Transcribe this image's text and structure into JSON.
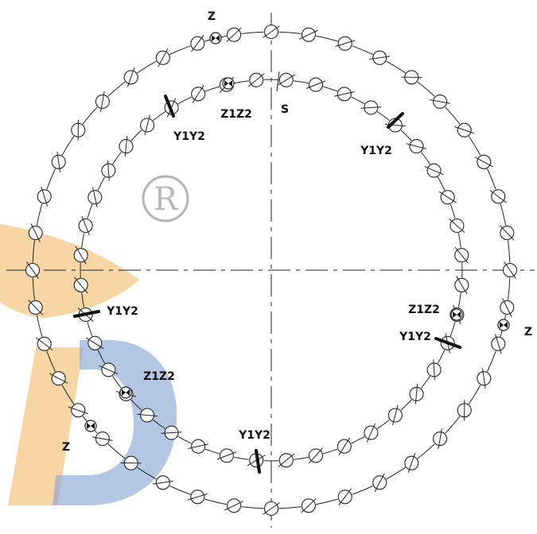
{
  "diagram": {
    "labels": {
      "z_top": "Z",
      "z1z2_top": "Z1Z2",
      "s_top": "S",
      "y1y2_upper_left": "Y1Y2",
      "y1y2_upper_right": "Y1Y2",
      "z1z2_right": "Z1Z2",
      "y1y2_right": "Y1Y2",
      "z_right": "Z",
      "y1y2_left": "Y1Y2",
      "z1z2_left": "Z1Z2",
      "z_left": "Z",
      "y1y2_bottom": "Y1Y2"
    },
    "registered_mark": "R",
    "colors": {
      "line": "#222222",
      "watermark_orange": "#f5c787",
      "watermark_blue": "#8aa9d2",
      "mark_gray": "#b5b5b5"
    }
  }
}
